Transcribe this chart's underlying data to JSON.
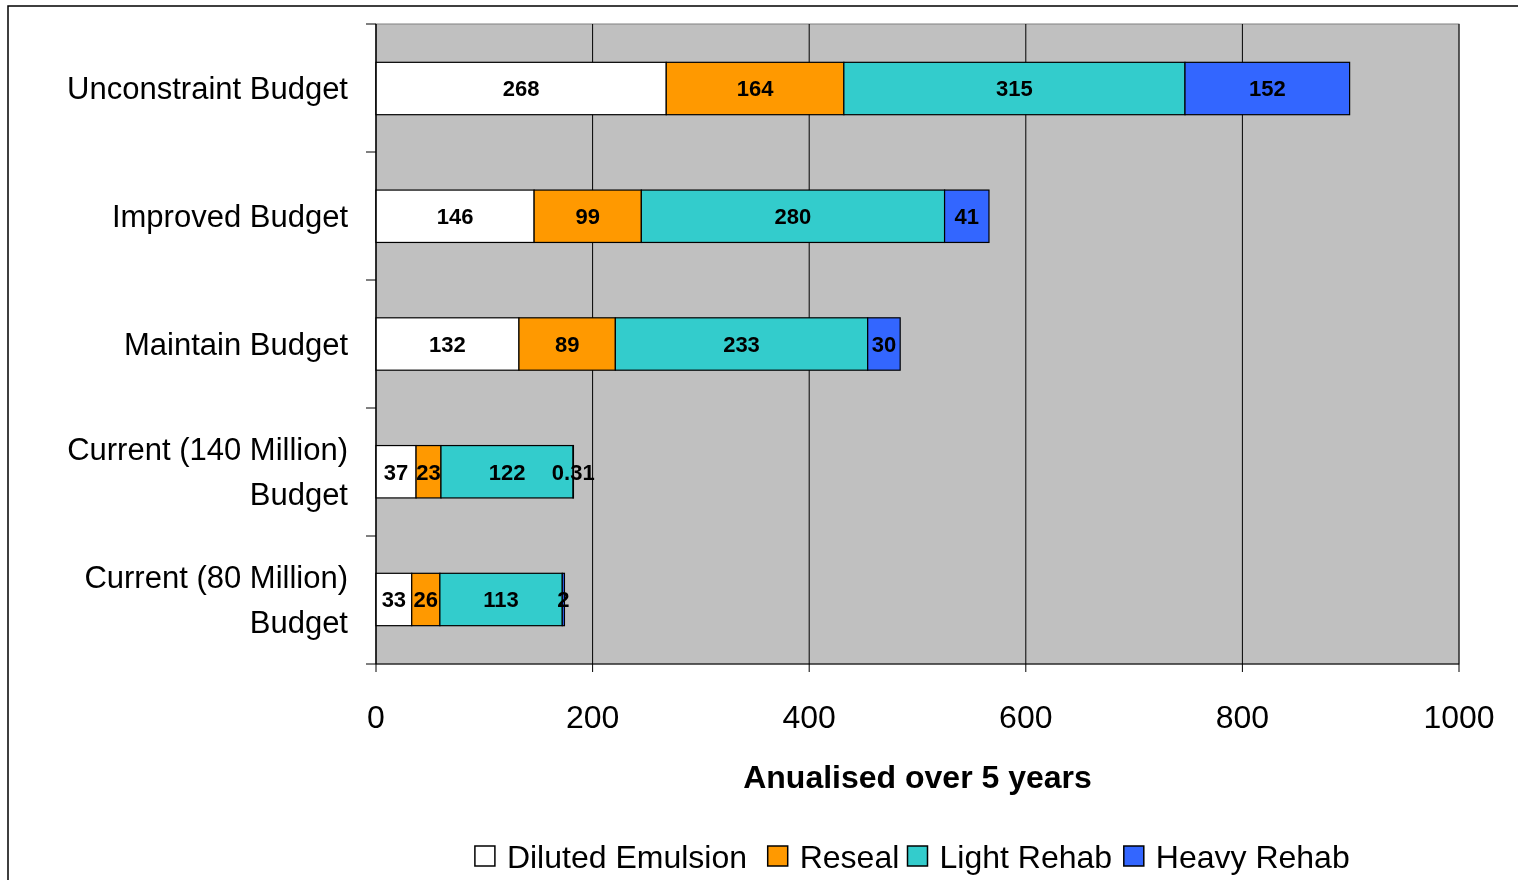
{
  "chart_data": {
    "type": "bar",
    "orientation": "horizontal",
    "stacked": true,
    "xlabel": "Anualised over 5 years",
    "categories": [
      "Unconstraint Budget",
      "Improved Budget",
      "Maintain Budget",
      "Current (140 Million) Budget",
      "Current (80 Million) Budget"
    ],
    "series": [
      {
        "name": "Diluted Emulsion",
        "color": "#ffffff",
        "values": [
          268,
          146,
          132,
          37,
          33
        ]
      },
      {
        "name": "Reseal",
        "color": "#ff9900",
        "values": [
          164,
          99,
          89,
          23,
          26
        ]
      },
      {
        "name": "Light Rehab",
        "color": "#33cccc",
        "values": [
          315,
          280,
          233,
          122,
          113
        ]
      },
      {
        "name": "Heavy Rehab",
        "color": "#3366ff",
        "values": [
          152,
          41,
          30,
          0.31,
          2
        ]
      }
    ],
    "xlim": [
      0,
      1000
    ],
    "xticks": [
      0,
      200,
      400,
      600,
      800,
      1000
    ],
    "grid": "x",
    "legend": "bottom",
    "data_labels": true
  }
}
